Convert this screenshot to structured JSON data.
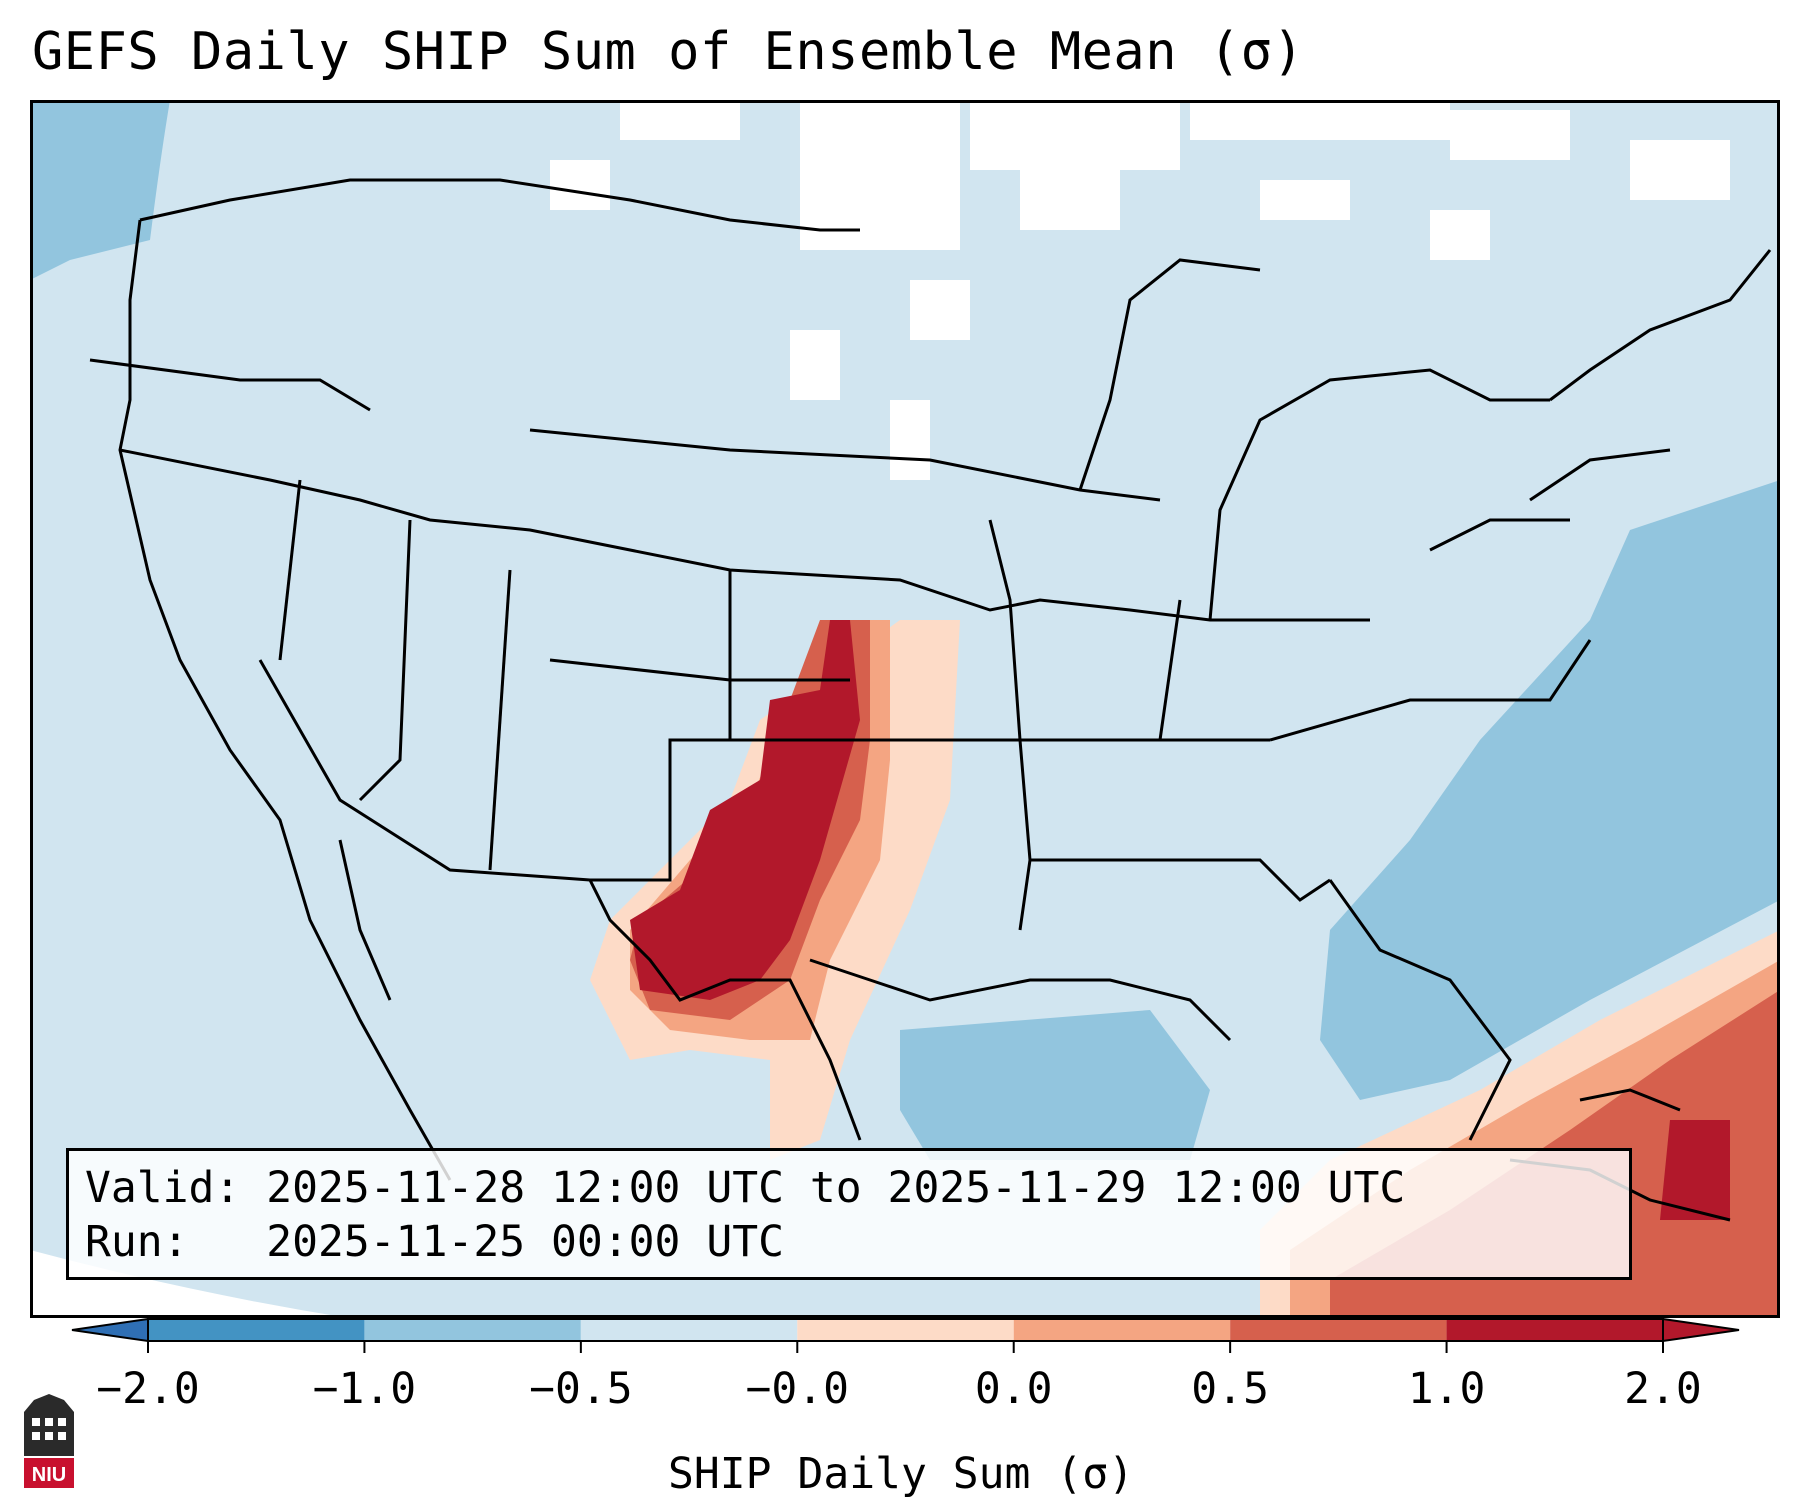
{
  "title": "GEFS Daily SHIP Sum of Ensemble Mean (σ)",
  "info": {
    "valid_label": "Valid:",
    "valid_value": "2025-11-28 12:00 UTC to 2025-11-29 12:00 UTC",
    "run_label": "Run:",
    "run_value": "2025-11-25 00:00 UTC"
  },
  "colorbar": {
    "label": "SHIP Daily Sum (σ)",
    "ticks": [
      "−2.0",
      "−1.0",
      "−0.5",
      "−0.0",
      "0.0",
      "0.5",
      "1.0",
      "2.0"
    ],
    "colors": [
      "#2f6fb4",
      "#4393c3",
      "#92c5de",
      "#d1e5f0",
      "#fddbc7",
      "#f4a582",
      "#d6604d",
      "#b2182b"
    ],
    "extend": "both"
  },
  "legend_colors": {
    "background_land": "#d1e5f0",
    "ocean_anomaly": "#92c5de",
    "high_anomaly": "#b2182b",
    "medium_anomaly": "#d6604d",
    "low_anomaly": "#f4a582",
    "slight_anomaly": "#fddbc7"
  },
  "logo": {
    "name": "NIU",
    "text": "NIU"
  }
}
